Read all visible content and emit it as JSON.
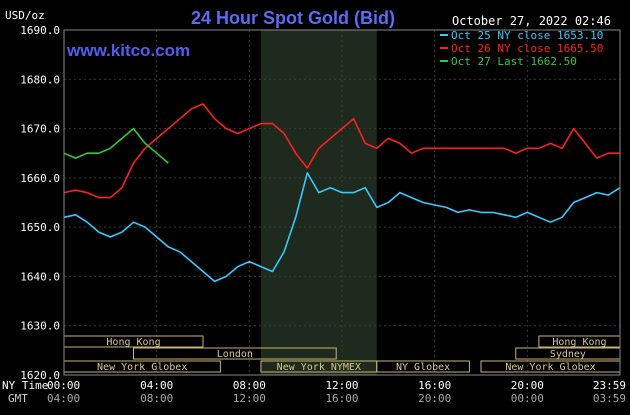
{
  "chart_data": {
    "type": "line",
    "title": "24 Hour Spot Gold (Bid)",
    "website": "www.kitco.com",
    "date_stamp": "October 27, 2022 02:46",
    "ylabel": "USD/oz",
    "ylim": [
      1620,
      1690
    ],
    "yticks": [
      "1690.0",
      "1680.0",
      "1670.0",
      "1660.0",
      "1650.0",
      "1640.0",
      "1630.0",
      "1620.0"
    ],
    "x_row_label_ny": "NY Time",
    "x_row_label_gmt": "GMT",
    "xticks_ny": [
      "00:00",
      "04:00",
      "08:00",
      "12:00",
      "16:00",
      "20:00",
      "23:59"
    ],
    "xticks_gmt": [
      "04:00",
      "08:00",
      "12:00",
      "16:00",
      "20:00",
      "00:00",
      "03:59"
    ],
    "grid": true,
    "legend_position": "top-right",
    "series": [
      {
        "name": "Oct 25 NY close 1653.10",
        "color": "#33ccff",
        "x": [
          0,
          0.5,
          1,
          1.5,
          2,
          2.5,
          3,
          3.5,
          4,
          4.5,
          5,
          5.5,
          6,
          6.5,
          7,
          7.5,
          8,
          8.5,
          9,
          9.5,
          10,
          10.5,
          11,
          11.5,
          12,
          12.5,
          13,
          13.5,
          14,
          14.5,
          15,
          15.5,
          16,
          16.5,
          17,
          17.5,
          18,
          18.5,
          19,
          19.5,
          20,
          20.5,
          21,
          21.5,
          22,
          22.5,
          23,
          23.5,
          24
        ],
        "values": [
          1652,
          1652.5,
          1651,
          1649,
          1648,
          1649,
          1651,
          1650,
          1648,
          1646,
          1645,
          1643,
          1641,
          1639,
          1640,
          1642,
          1643,
          1642,
          1641,
          1645,
          1652,
          1661,
          1657,
          1658,
          1657,
          1657,
          1658,
          1654,
          1655,
          1657,
          1656,
          1655,
          1654.5,
          1654,
          1653,
          1653.5,
          1653,
          1653,
          1652.5,
          1652,
          1653,
          1652,
          1651,
          1652,
          1655,
          1656,
          1657,
          1656.5,
          1658
        ]
      },
      {
        "name": "Oct 26 NY close 1665.50",
        "color": "#ff2020",
        "x": [
          0,
          0.5,
          1,
          1.5,
          2,
          2.5,
          3,
          3.5,
          4,
          4.5,
          5,
          5.5,
          6,
          6.5,
          7,
          7.5,
          8,
          8.5,
          9,
          9.5,
          10,
          10.5,
          11,
          11.5,
          12,
          12.5,
          13,
          13.5,
          14,
          14.5,
          15,
          15.5,
          16,
          16.5,
          17,
          17.5,
          18,
          18.5,
          19,
          19.5,
          20,
          20.5,
          21,
          21.5,
          22,
          22.5,
          23,
          23.5,
          24
        ],
        "values": [
          1657,
          1657.5,
          1657,
          1656,
          1656,
          1658,
          1663,
          1666,
          1668,
          1670,
          1672,
          1674,
          1675,
          1672,
          1670,
          1669,
          1670,
          1671,
          1671,
          1669,
          1665,
          1662,
          1666,
          1668,
          1670,
          1672,
          1667,
          1666,
          1668,
          1667,
          1665,
          1666,
          1666,
          1666,
          1666,
          1666,
          1666,
          1666,
          1666,
          1665,
          1666,
          1666,
          1667,
          1666,
          1670,
          1667,
          1664,
          1665,
          1665
        ]
      },
      {
        "name": "Oct 27 Last 1662.50",
        "color": "#33cc33",
        "x": [
          0,
          0.5,
          1,
          1.5,
          2,
          2.5,
          3,
          3.5,
          4,
          4.5,
          5,
          5.5,
          6,
          6.5,
          7,
          7.5,
          8,
          8.5,
          9,
          9.5,
          10,
          10.5,
          11,
          11.5,
          12,
          12.5,
          13,
          13.5,
          14,
          14.5,
          15,
          15.5,
          16,
          16.5,
          17,
          17.5,
          18,
          18.5,
          19,
          19.5,
          20,
          20.5,
          21,
          21.5,
          22,
          22.5,
          23,
          23.5,
          24
        ],
        "values": [
          1665,
          1664,
          1665,
          1665,
          1666,
          1668,
          1670,
          1667,
          1665,
          1663,
          null,
          null,
          null,
          null,
          null,
          null,
          null,
          null,
          null,
          null,
          null,
          null,
          null,
          null,
          null,
          null,
          null,
          null,
          null,
          null,
          null,
          null,
          null,
          null,
          null,
          null,
          null,
          null,
          null,
          null,
          null,
          null,
          null,
          null,
          null,
          null,
          null,
          null,
          null
        ]
      }
    ],
    "session_bars": [
      {
        "label": "Hong Kong",
        "start": 0,
        "end": 6
      },
      {
        "label": "London",
        "start": 3,
        "end": 11.75
      },
      {
        "label": "New York Globex",
        "start": 0,
        "end": 6.75
      },
      {
        "label": "New York NYMEX",
        "start": 8.5,
        "end": 13.5
      },
      {
        "label": "NY Globex",
        "start": 13.5,
        "end": 17.5
      },
      {
        "label": "Hong Kong",
        "start": 20.5,
        "end": 24
      },
      {
        "label": "Sydney",
        "start": 19.5,
        "end": 24
      },
      {
        "label": "New York Globex",
        "start": 18,
        "end": 24
      }
    ],
    "shaded_session": {
      "start": 8.5,
      "end": 13.5,
      "color": "#1e2a1e"
    }
  }
}
